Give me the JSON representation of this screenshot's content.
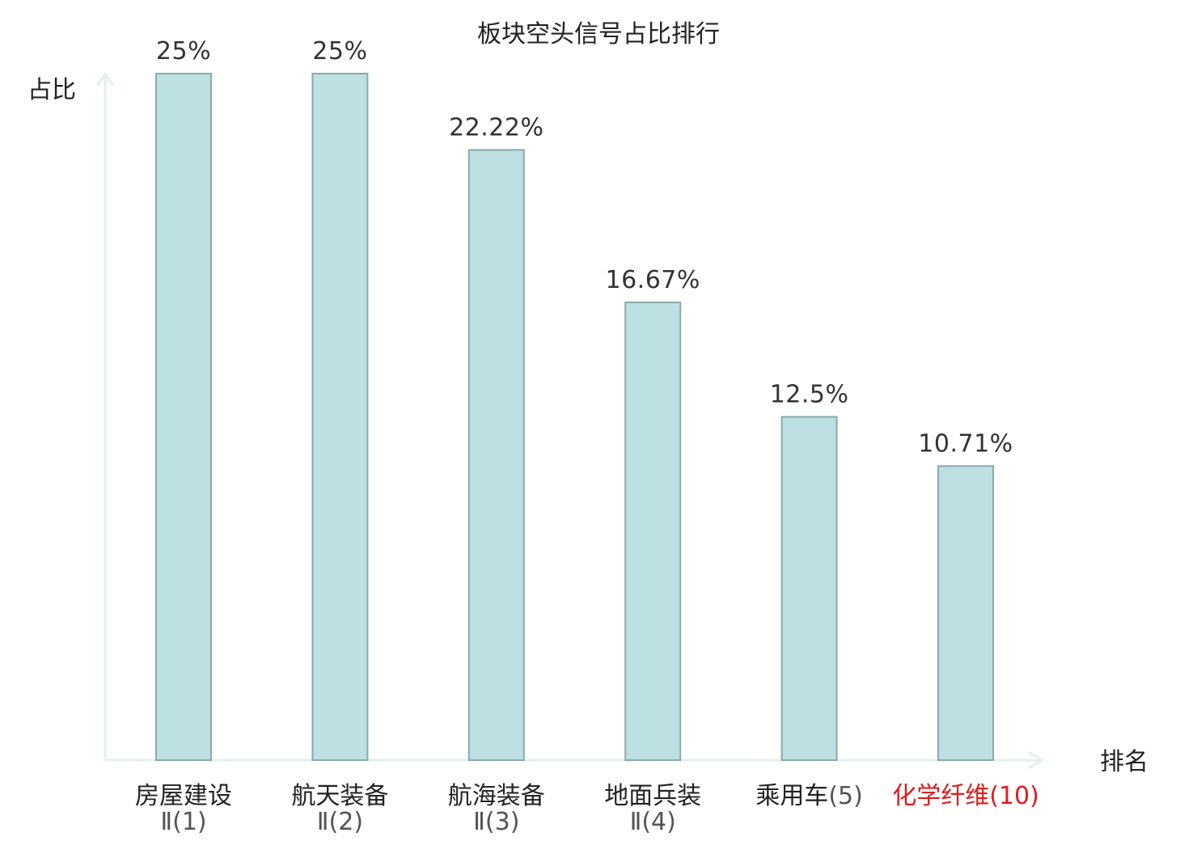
{
  "colors": {
    "bar_fill": "#bde0e3",
    "bar_stroke": "#8aa9ac",
    "axis": "#dff2ee",
    "text": "#222222",
    "value_text": "#333333",
    "sub_text": "#555555",
    "highlight": "#e31a1c"
  },
  "chart_data": {
    "type": "bar",
    "title": "板块空头信号占比排行",
    "xlabel": "排名",
    "ylabel": "占比",
    "ylim": [
      0,
      25
    ],
    "grid": false,
    "legend": "none",
    "categories": [
      {
        "name": "房屋建设",
        "rank": "Ⅱ(1)",
        "highlight": false
      },
      {
        "name": "航天装备",
        "rank": "Ⅱ(2)",
        "highlight": false
      },
      {
        "name": "航海装备",
        "rank": "Ⅱ(3)",
        "highlight": false
      },
      {
        "name": "地面兵装",
        "rank": "Ⅱ(4)",
        "highlight": false
      },
      {
        "name": "乘用车",
        "rank": "(5)",
        "highlight": false
      },
      {
        "name": "化学纤维",
        "rank": "(10)",
        "highlight": true
      }
    ],
    "values": [
      25,
      25,
      22.22,
      16.67,
      12.5,
      10.71
    ],
    "value_labels": [
      "25%",
      "25%",
      "22.22%",
      "16.67%",
      "12.5%",
      "10.71%"
    ]
  }
}
